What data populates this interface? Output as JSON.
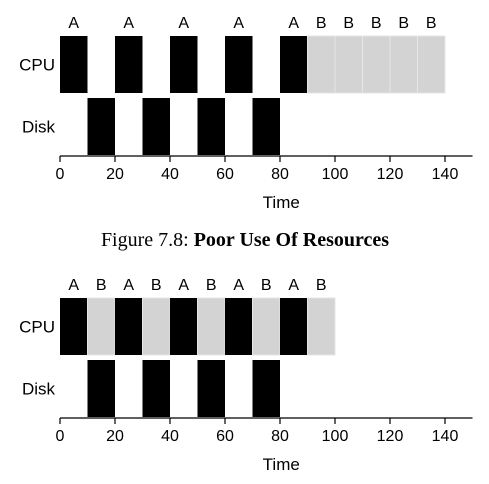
{
  "colors": {
    "job_a": "#000000",
    "job_b": "#d3d3d3"
  },
  "caption": {
    "prefix": "Figure 7.8: ",
    "title": "Poor Use Of Resources"
  },
  "chart_data": [
    {
      "type": "timeline",
      "rows": [
        "CPU",
        "Disk"
      ],
      "xlabel": "Time",
      "xlim": [
        0,
        150
      ],
      "xticks": [
        0,
        20,
        40,
        60,
        80,
        100,
        120,
        140
      ],
      "segments": [
        {
          "row": "CPU",
          "job": "A",
          "start": 0,
          "end": 10
        },
        {
          "row": "CPU",
          "job": "A",
          "start": 20,
          "end": 30
        },
        {
          "row": "CPU",
          "job": "A",
          "start": 40,
          "end": 50
        },
        {
          "row": "CPU",
          "job": "A",
          "start": 60,
          "end": 70
        },
        {
          "row": "CPU",
          "job": "A",
          "start": 80,
          "end": 90
        },
        {
          "row": "CPU",
          "job": "B",
          "start": 90,
          "end": 100
        },
        {
          "row": "CPU",
          "job": "B",
          "start": 100,
          "end": 110
        },
        {
          "row": "CPU",
          "job": "B",
          "start": 110,
          "end": 120
        },
        {
          "row": "CPU",
          "job": "B",
          "start": 120,
          "end": 130
        },
        {
          "row": "CPU",
          "job": "B",
          "start": 130,
          "end": 140
        },
        {
          "row": "Disk",
          "job": "A",
          "start": 10,
          "end": 20
        },
        {
          "row": "Disk",
          "job": "A",
          "start": 30,
          "end": 40
        },
        {
          "row": "Disk",
          "job": "A",
          "start": 50,
          "end": 60
        },
        {
          "row": "Disk",
          "job": "A",
          "start": 70,
          "end": 80
        }
      ]
    },
    {
      "type": "timeline",
      "rows": [
        "CPU",
        "Disk"
      ],
      "xlabel": "Time",
      "xlim": [
        0,
        150
      ],
      "xticks": [
        0,
        20,
        40,
        60,
        80,
        100,
        120,
        140
      ],
      "segments": [
        {
          "row": "CPU",
          "job": "A",
          "start": 0,
          "end": 10
        },
        {
          "row": "CPU",
          "job": "B",
          "start": 10,
          "end": 20
        },
        {
          "row": "CPU",
          "job": "A",
          "start": 20,
          "end": 30
        },
        {
          "row": "CPU",
          "job": "B",
          "start": 30,
          "end": 40
        },
        {
          "row": "CPU",
          "job": "A",
          "start": 40,
          "end": 50
        },
        {
          "row": "CPU",
          "job": "B",
          "start": 50,
          "end": 60
        },
        {
          "row": "CPU",
          "job": "A",
          "start": 60,
          "end": 70
        },
        {
          "row": "CPU",
          "job": "B",
          "start": 70,
          "end": 80
        },
        {
          "row": "CPU",
          "job": "A",
          "start": 80,
          "end": 90
        },
        {
          "row": "CPU",
          "job": "B",
          "start": 90,
          "end": 100
        },
        {
          "row": "Disk",
          "job": "A",
          "start": 10,
          "end": 20
        },
        {
          "row": "Disk",
          "job": "A",
          "start": 30,
          "end": 40
        },
        {
          "row": "Disk",
          "job": "A",
          "start": 50,
          "end": 60
        },
        {
          "row": "Disk",
          "job": "A",
          "start": 70,
          "end": 80
        }
      ]
    }
  ]
}
